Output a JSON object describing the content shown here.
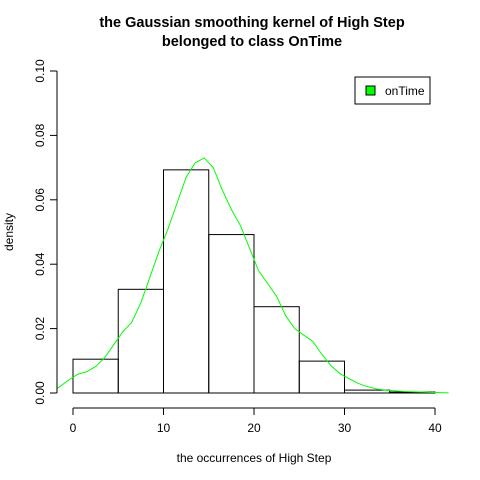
{
  "chart_data": {
    "type": "bar",
    "title_line1": "the Gaussian smoothing kernel of High Step",
    "title_line2": "belonged to class OnTime",
    "xlabel": "the occurrences of High Step",
    "ylabel": "density",
    "xlim": [
      0,
      40
    ],
    "ylim": [
      0,
      0.1
    ],
    "x_ticks": [
      0,
      10,
      20,
      30,
      40
    ],
    "y_ticks": [
      0.0,
      0.02,
      0.04,
      0.06,
      0.08,
      0.1
    ],
    "y_tick_labels": [
      "0.00",
      "0.02",
      "0.04",
      "0.06",
      "0.08",
      "0.10"
    ],
    "x_tick_labels": [
      "0",
      "10",
      "20",
      "30",
      "40"
    ],
    "grid": false,
    "legend_position": "top-right",
    "histogram": {
      "bin_edges": [
        0,
        5,
        10,
        15,
        20,
        25,
        30,
        35,
        40
      ],
      "values": [
        0.0105,
        0.0322,
        0.0693,
        0.0492,
        0.0268,
        0.0099,
        0.0009,
        0.0003
      ],
      "fill": "none",
      "stroke": "#000000"
    },
    "series": [
      {
        "name": "onTime",
        "color": "#00ff00",
        "x": [
          -1.7,
          -0.5,
          0.5,
          1.5,
          2.5,
          3.5,
          4.5,
          5.5,
          6.5,
          7.5,
          8.5,
          9.5,
          10.5,
          11.5,
          12.5,
          13.5,
          14.5,
          15.5,
          16.5,
          17.5,
          18.5,
          19.5,
          20.5,
          21.5,
          22.5,
          23.5,
          24.5,
          25.5,
          26.5,
          27.5,
          28.5,
          29.5,
          30.5,
          31.5,
          32.5,
          33.5,
          34.5,
          35.5,
          36.5,
          37.5,
          38.5,
          39.5,
          40.5,
          41.5
        ],
        "y": [
          0.0015,
          0.004,
          0.0058,
          0.0066,
          0.0082,
          0.011,
          0.015,
          0.019,
          0.022,
          0.028,
          0.036,
          0.044,
          0.051,
          0.059,
          0.067,
          0.0715,
          0.073,
          0.07,
          0.063,
          0.057,
          0.052,
          0.045,
          0.038,
          0.034,
          0.03,
          0.024,
          0.02,
          0.018,
          0.016,
          0.012,
          0.0085,
          0.006,
          0.0045,
          0.003,
          0.002,
          0.0013,
          0.0009,
          0.0007,
          0.0005,
          0.0004,
          0.0003,
          0.0002,
          0.0001,
          5e-05
        ]
      }
    ]
  }
}
